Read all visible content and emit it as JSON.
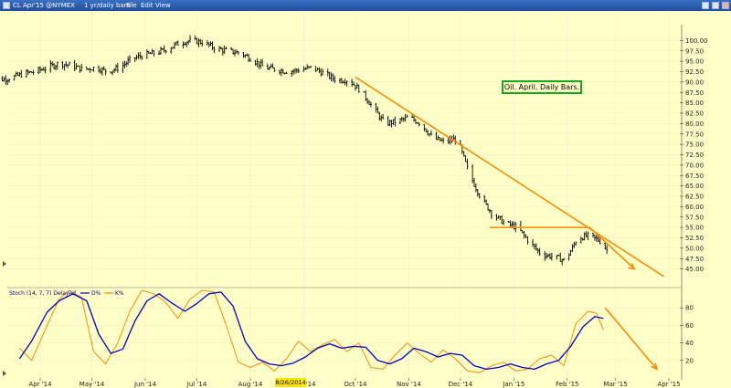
{
  "window": {
    "symbol_label": "CL Apr'15 @NYMEX",
    "interval_label": "1 yr/daily bars",
    "menu": [
      "File",
      "Edit",
      "View"
    ]
  },
  "annotation": "Oil. April. Daily Bars.",
  "highlighted_date": "8/26/2014",
  "stoch_label": "Stoch (14, 7, 7) Delayed",
  "stoch_legend": [
    "D%",
    "K%"
  ],
  "colors": {
    "background": "#ffffc8",
    "bars": "#000000",
    "trendline": "#ff8c00",
    "stoch_d": "#0000c0",
    "stoch_k": "#ff8c00",
    "annotation_border": "#1aa61a",
    "date_highlight": "#ffe600"
  },
  "chart_data": [
    {
      "type": "ohlc",
      "title": "",
      "ylim": [
        42.5,
        102.5
      ],
      "y_ticks": [
        45.0,
        47.5,
        50.0,
        52.5,
        55.0,
        57.5,
        60.0,
        62.5,
        65.0,
        67.5,
        70.0,
        72.5,
        75.0,
        77.5,
        80.0,
        82.5,
        85.0,
        87.5,
        90.0,
        92.5,
        95.0,
        97.5,
        100.0
      ],
      "y_tick_labels": [
        "45.00",
        "47.50",
        "50.00",
        "52.50",
        "55.00",
        "57.50",
        "60.00",
        "62.50",
        "65.00",
        "67.50",
        "70.00",
        "72.50",
        "75.00",
        "77.50",
        "80.00",
        "82.50",
        "85.00",
        "87.50",
        "90.00",
        "92.50",
        "95.00",
        "97.50",
        "100.00"
      ],
      "x_tick_labels": [
        "Apr '14",
        "May '14",
        "Jun '14",
        "Jul '14",
        "Aug '14",
        "Sep '14",
        "Oct '14",
        "Nov '14",
        "Dec '14",
        "Jan '15",
        "Feb '15",
        "Mar '15",
        "Apr '15"
      ],
      "close_path": [
        [
          "2014-03-01",
          91.5
        ],
        [
          "2014-03-08",
          90.5
        ],
        [
          "2014-03-15",
          91.0
        ],
        [
          "2014-03-22",
          92.0
        ],
        [
          "2014-03-29",
          92.5
        ],
        [
          "2014-04-05",
          93.5
        ],
        [
          "2014-04-12",
          94.5
        ],
        [
          "2014-04-19",
          94.0
        ],
        [
          "2014-04-26",
          93.0
        ],
        [
          "2014-05-03",
          93.5
        ],
        [
          "2014-05-10",
          92.5
        ],
        [
          "2014-05-17",
          93.5
        ],
        [
          "2014-05-24",
          95.5
        ],
        [
          "2014-05-31",
          96.5
        ],
        [
          "2014-06-07",
          97.0
        ],
        [
          "2014-06-14",
          98.0
        ],
        [
          "2014-06-21",
          99.5
        ],
        [
          "2014-06-28",
          100.0
        ],
        [
          "2014-07-05",
          99.5
        ],
        [
          "2014-07-12",
          98.0
        ],
        [
          "2014-07-19",
          97.5
        ],
        [
          "2014-07-26",
          97.0
        ],
        [
          "2014-08-02",
          95.5
        ],
        [
          "2014-08-09",
          93.5
        ],
        [
          "2014-08-16",
          93.0
        ],
        [
          "2014-08-23",
          92.5
        ],
        [
          "2014-08-30",
          93.0
        ],
        [
          "2014-09-06",
          93.5
        ],
        [
          "2014-09-13",
          92.0
        ],
        [
          "2014-09-20",
          90.5
        ],
        [
          "2014-09-27",
          90.5
        ],
        [
          "2014-10-04",
          88.0
        ],
        [
          "2014-10-11",
          84.0
        ],
        [
          "2014-10-18",
          80.0
        ],
        [
          "2014-10-25",
          80.5
        ],
        [
          "2014-11-01",
          81.5
        ],
        [
          "2014-11-08",
          80.0
        ],
        [
          "2014-11-15",
          76.5
        ],
        [
          "2014-11-22",
          75.5
        ],
        [
          "2014-11-29",
          76.5
        ],
        [
          "2014-12-06",
          68.0
        ],
        [
          "2014-12-13",
          62.0
        ],
        [
          "2014-12-20",
          58.0
        ],
        [
          "2014-12-27",
          56.0
        ],
        [
          "2015-01-03",
          55.0
        ],
        [
          "2015-01-10",
          51.5
        ],
        [
          "2015-01-17",
          48.5
        ],
        [
          "2015-01-24",
          48.0
        ],
        [
          "2015-01-31",
          47.0
        ],
        [
          "2015-02-07",
          52.5
        ],
        [
          "2015-02-14",
          53.0
        ],
        [
          "2015-02-21",
          51.5
        ],
        [
          "2015-02-24",
          49.5
        ]
      ],
      "trendlines": [
        {
          "from": [
            "2014-10-01",
            91.2
          ],
          "to": [
            "2015-03-29",
            43.2
          ]
        },
        {
          "from": [
            "2014-12-18",
            55.0
          ],
          "to": [
            "2015-02-14",
            55.0
          ]
        },
        {
          "from": [
            "2015-02-14",
            55.0
          ],
          "to": [
            "2015-03-12",
            45.0
          ]
        }
      ],
      "arrows": [
        {
          "from": [
            "2015-02-28",
            48.8
          ],
          "to": [
            "2015-03-12",
            45.0
          ]
        }
      ]
    },
    {
      "type": "line",
      "title": "Stoch (14, 7, 7) Delayed",
      "ylim": [
        0,
        100
      ],
      "y_ticks": [
        20,
        40,
        60,
        80
      ],
      "y_tick_labels": [
        "20",
        "40",
        "60",
        "80"
      ],
      "series": [
        {
          "name": "D%",
          "points": [
            [
              "2014-03-20",
              22
            ],
            [
              "2014-03-27",
              42
            ],
            [
              "2014-04-05",
              75
            ],
            [
              "2014-04-12",
              88
            ],
            [
              "2014-04-20",
              96
            ],
            [
              "2014-04-28",
              88
            ],
            [
              "2014-05-05",
              50
            ],
            [
              "2014-05-12",
              28
            ],
            [
              "2014-05-19",
              33
            ],
            [
              "2014-05-26",
              65
            ],
            [
              "2014-06-02",
              88
            ],
            [
              "2014-06-09",
              96
            ],
            [
              "2014-06-16",
              86
            ],
            [
              "2014-06-24",
              76
            ],
            [
              "2014-07-01",
              85
            ],
            [
              "2014-07-08",
              96
            ],
            [
              "2014-07-15",
              98
            ],
            [
              "2014-07-22",
              82
            ],
            [
              "2014-07-29",
              42
            ],
            [
              "2014-08-05",
              22
            ],
            [
              "2014-08-12",
              16
            ],
            [
              "2014-08-19",
              14
            ],
            [
              "2014-08-26",
              17
            ],
            [
              "2014-09-02",
              24
            ],
            [
              "2014-09-09",
              34
            ],
            [
              "2014-09-16",
              39
            ],
            [
              "2014-09-23",
              34
            ],
            [
              "2014-09-30",
              36
            ],
            [
              "2014-10-07",
              35
            ],
            [
              "2014-10-14",
              20
            ],
            [
              "2014-10-21",
              16
            ],
            [
              "2014-10-28",
              22
            ],
            [
              "2014-11-04",
              34
            ],
            [
              "2014-11-11",
              30
            ],
            [
              "2014-11-18",
              24
            ],
            [
              "2014-11-25",
              28
            ],
            [
              "2014-12-02",
              26
            ],
            [
              "2014-12-09",
              14
            ],
            [
              "2014-12-16",
              10
            ],
            [
              "2014-12-23",
              12
            ],
            [
              "2014-12-30",
              16
            ],
            [
              "2015-01-06",
              12
            ],
            [
              "2015-01-13",
              10
            ],
            [
              "2015-01-20",
              16
            ],
            [
              "2015-01-27",
              20
            ],
            [
              "2015-02-03",
              36
            ],
            [
              "2015-02-10",
              58
            ],
            [
              "2015-02-17",
              70
            ],
            [
              "2015-02-22",
              68
            ]
          ]
        },
        {
          "name": "K%",
          "points": [
            [
              "2014-03-20",
              34
            ],
            [
              "2014-03-27",
              20
            ],
            [
              "2014-04-05",
              60
            ],
            [
              "2014-04-12",
              90
            ],
            [
              "2014-04-18",
              100
            ],
            [
              "2014-04-25",
              92
            ],
            [
              "2014-05-02",
              30
            ],
            [
              "2014-05-09",
              16
            ],
            [
              "2014-05-16",
              40
            ],
            [
              "2014-05-23",
              76
            ],
            [
              "2014-05-30",
              100
            ],
            [
              "2014-06-06",
              96
            ],
            [
              "2014-06-13",
              86
            ],
            [
              "2014-06-20",
              68
            ],
            [
              "2014-06-27",
              90
            ],
            [
              "2014-07-04",
              100
            ],
            [
              "2014-07-11",
              98
            ],
            [
              "2014-07-18",
              60
            ],
            [
              "2014-07-25",
              18
            ],
            [
              "2014-08-01",
              12
            ],
            [
              "2014-08-08",
              18
            ],
            [
              "2014-08-15",
              8
            ],
            [
              "2014-08-22",
              22
            ],
            [
              "2014-08-29",
              42
            ],
            [
              "2014-09-05",
              30
            ],
            [
              "2014-09-12",
              38
            ],
            [
              "2014-09-19",
              44
            ],
            [
              "2014-09-26",
              30
            ],
            [
              "2014-10-03",
              40
            ],
            [
              "2014-10-10",
              12
            ],
            [
              "2014-10-17",
              10
            ],
            [
              "2014-10-24",
              26
            ],
            [
              "2014-10-31",
              40
            ],
            [
              "2014-11-07",
              28
            ],
            [
              "2014-11-14",
              18
            ],
            [
              "2014-11-21",
              32
            ],
            [
              "2014-11-28",
              22
            ],
            [
              "2014-12-05",
              8
            ],
            [
              "2014-12-12",
              6
            ],
            [
              "2014-12-19",
              14
            ],
            [
              "2014-12-26",
              18
            ],
            [
              "2015-01-02",
              8
            ],
            [
              "2015-01-09",
              10
            ],
            [
              "2015-01-16",
              22
            ],
            [
              "2015-01-23",
              26
            ],
            [
              "2015-01-30",
              14
            ],
            [
              "2015-02-06",
              62
            ],
            [
              "2015-02-13",
              76
            ],
            [
              "2015-02-18",
              74
            ],
            [
              "2015-02-22",
              55
            ]
          ]
        }
      ],
      "arrows": [
        {
          "from": [
            "2015-02-23",
            80
          ],
          "to": [
            "2015-03-25",
            10
          ]
        }
      ]
    }
  ]
}
